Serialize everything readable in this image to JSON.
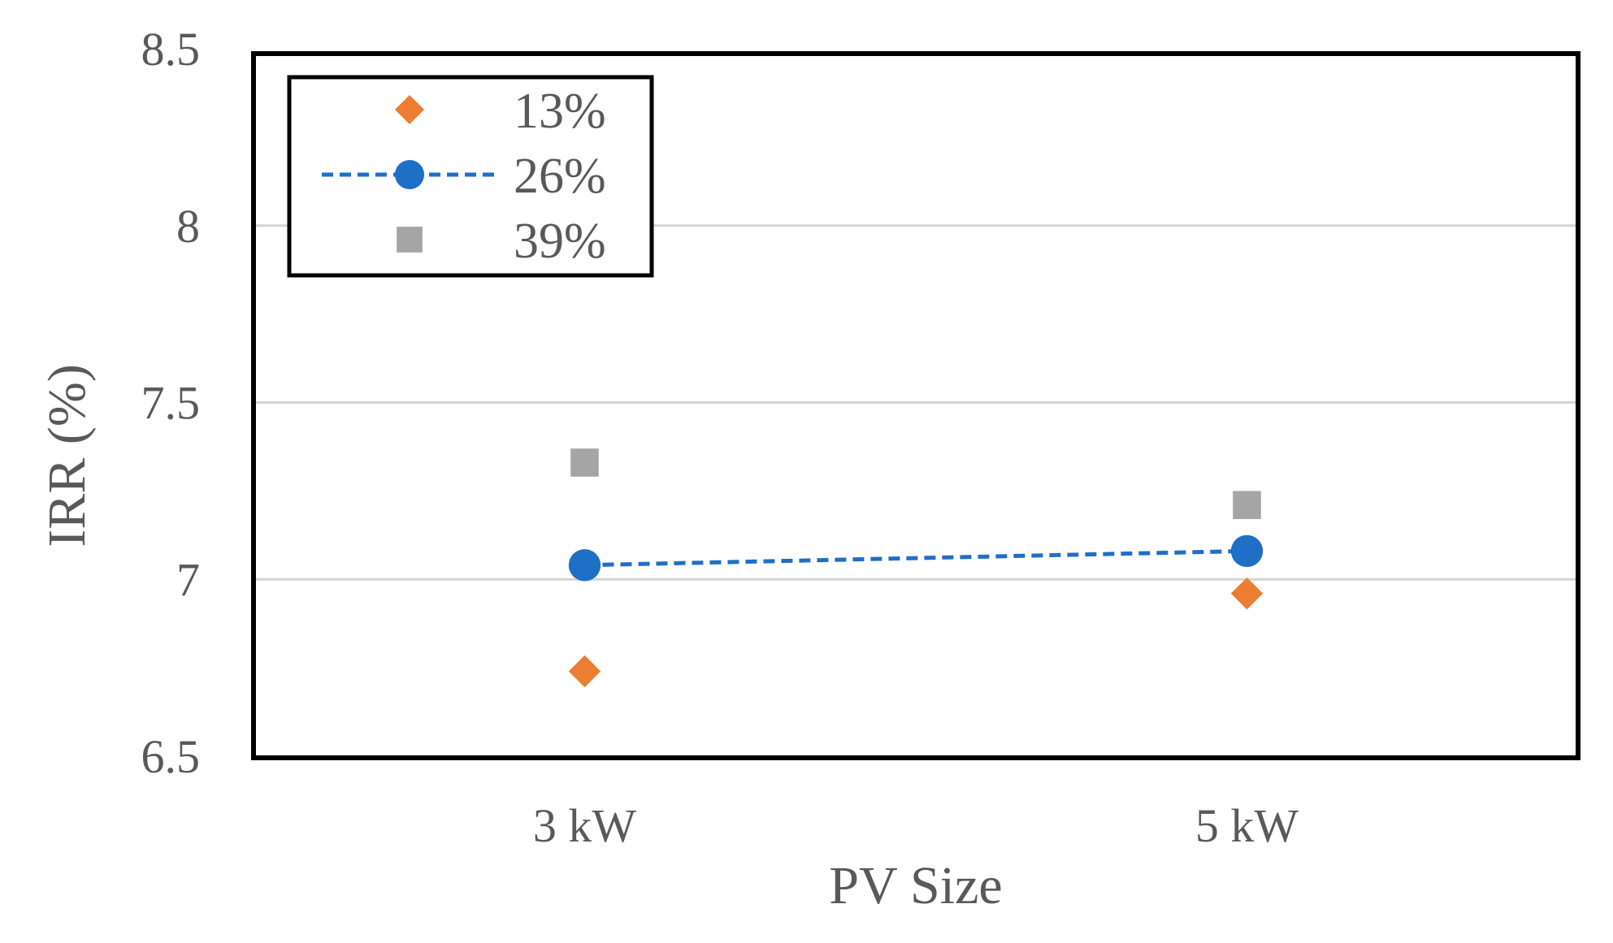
{
  "chart_data": {
    "type": "scatter",
    "title": "",
    "xlabel": "PV Size",
    "ylabel": "IRR (%)",
    "categories": [
      "3 kW",
      "5 kW"
    ],
    "ylim": [
      6.5,
      8.5
    ],
    "yticks": [
      "6.5",
      "7",
      "7.5",
      "8",
      "8.5"
    ],
    "grid": true,
    "legend_position": "top-left",
    "series": [
      {
        "name": "13%",
        "values": [
          6.74,
          6.96
        ],
        "marker": "diamond",
        "color": "#ED7D31",
        "line": false
      },
      {
        "name": "26%",
        "values": [
          7.04,
          7.08
        ],
        "marker": "circle",
        "color": "#1F6FC6",
        "line": true
      },
      {
        "name": "39%",
        "values": [
          7.33,
          7.21
        ],
        "marker": "square",
        "color": "#A5A5A5",
        "line": false
      }
    ]
  }
}
